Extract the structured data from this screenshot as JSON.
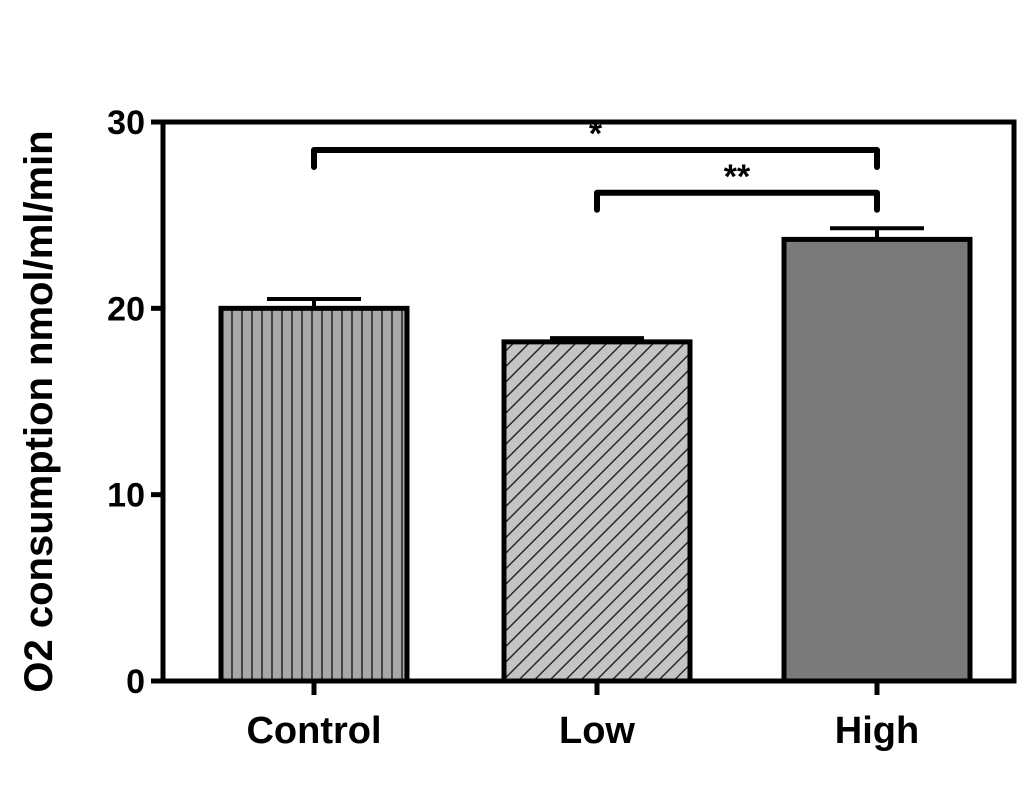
{
  "chart_data": {
    "type": "bar",
    "title": "",
    "xlabel": "",
    "ylabel": "O2 consumption nmol/ml/min",
    "ylim": [
      0,
      30
    ],
    "yticks": [
      0,
      10,
      20,
      30
    ],
    "categories": [
      "Control",
      "Low",
      "High"
    ],
    "values": [
      20.0,
      18.2,
      23.7
    ],
    "errors": [
      0.5,
      0.2,
      0.6
    ],
    "bar_colors": [
      "#a8a8a8",
      "#bdbdbd",
      "#7a7a7a"
    ],
    "bar_patterns": [
      "vertical-stripes",
      "diagonal-stripes",
      "solid"
    ],
    "significance": [
      {
        "from": "Control",
        "to": "High",
        "label": "*",
        "y": 28.5
      },
      {
        "from": "Low",
        "to": "High",
        "label": "**",
        "y": 26.2
      }
    ]
  }
}
